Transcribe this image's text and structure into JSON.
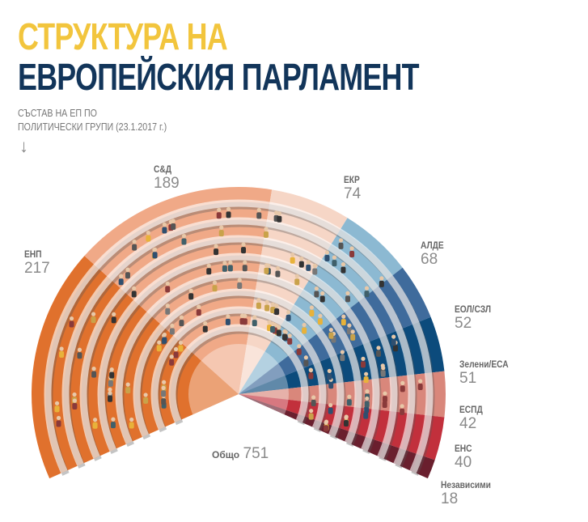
{
  "title_line1": "СТРУКТУРА НА",
  "title_line2": "ЕВРОПЕЙСКИЯ ПАРЛАМЕНТ",
  "subtitle_line1": "СЪСТАВ НА ЕП ПО",
  "subtitle_line2": "ПОЛИТИЧЕСКИ ГРУПИ (23.1.2017 г.)",
  "arrow_icon": "arrow-down-icon",
  "chart_data": {
    "type": "pie",
    "subtype": "parliament-semicircle",
    "title": "Състав на ЕП по политически групи (23.1.2017 г.)",
    "categories": [
      "ЕНП",
      "С&Д",
      "ЕКР",
      "АЛДЕ",
      "ЕОЛ/СЗЛ",
      "Зелени/ЕСА",
      "ЕСПД",
      "ЕНС",
      "Независими"
    ],
    "values": [
      217,
      189,
      74,
      68,
      52,
      51,
      42,
      40,
      18
    ],
    "colors": [
      "#e0712d",
      "#f0a987",
      "#f6d6c6",
      "#8cb9d2",
      "#3f6b9c",
      "#0c4b7c",
      "#d9877b",
      "#c2303c",
      "#6a1f2e"
    ],
    "total_label": "Общо",
    "total": 751
  }
}
